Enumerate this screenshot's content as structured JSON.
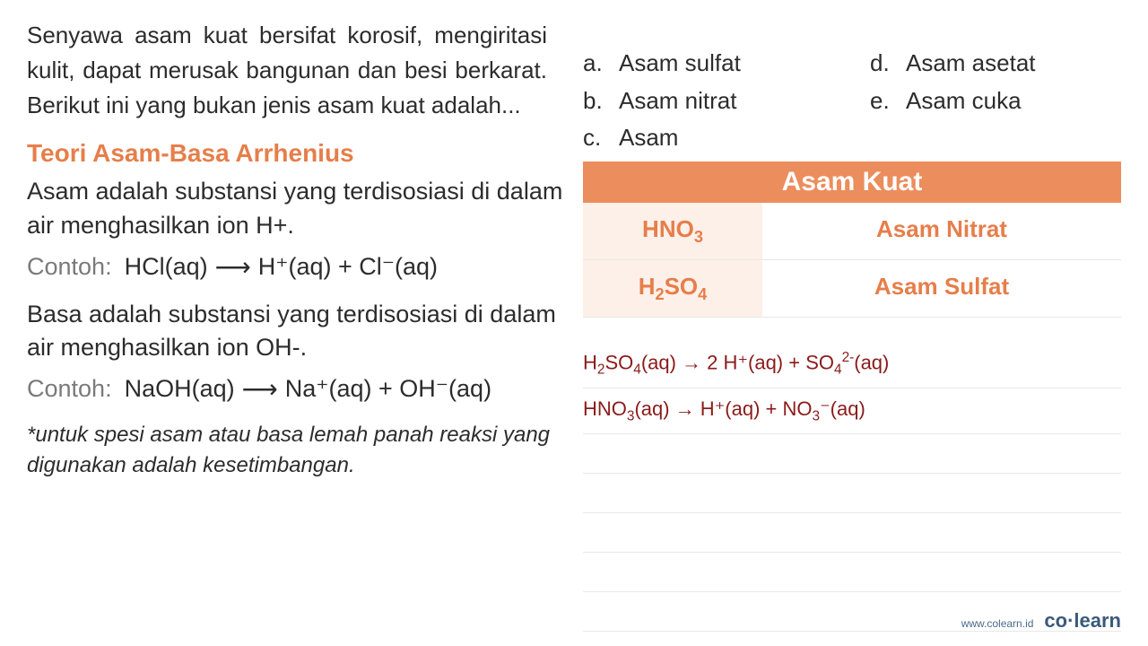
{
  "question": "Senyawa asam kuat bersifat korosif, mengiritasi kulit, dapat merusak bangunan dan besi berkarat. Berikut ini yang bukan jenis asam kuat adalah...",
  "options": [
    {
      "letter": "a.",
      "text": "Asam sulfat"
    },
    {
      "letter": "b.",
      "text": "Asam nitrat"
    },
    {
      "letter": "c.",
      "text": "Asam"
    },
    {
      "letter": "d.",
      "text": "Asam asetat"
    },
    {
      "letter": "e.",
      "text": "Asam cuka"
    }
  ],
  "section_title": "Teori Asam-Basa Arrhenius",
  "asam_definition": "Asam adalah substansi yang terdisosiasi di dalam air menghasilkan ion H+.",
  "contoh_label": "Contoh:",
  "asam_equation_left": "HCl(aq)",
  "asam_equation_right": "H⁺(aq) + Cl⁻(aq)",
  "basa_definition": "Basa adalah substansi yang terdisosiasi di dalam air menghasilkan ion OH-.",
  "basa_equation_left": "NaOH(aq)",
  "basa_equation_right": "Na⁺(aq) + OH⁻(aq)",
  "note": "*untuk spesi asam atau basa lemah panah reaksi yang digunakan adalah kesetimbangan.",
  "table": {
    "header": "Asam Kuat",
    "rows": [
      {
        "formula_html": "HNO<sub>3</sub>",
        "name": "Asam Nitrat"
      },
      {
        "formula_html": "H<sub>2</sub>SO<sub>4</sub>",
        "name": "Asam Sulfat"
      }
    ]
  },
  "reactions": [
    "H<sub>2</sub>SO<sub>4</sub>(aq) → 2 H⁺(aq) + SO<sub>4</sub><sup>2-</sup>(aq)",
    "HNO<sub>3</sub>(aq) → H⁺(aq) + NO<sub>3</sub>⁻(aq)"
  ],
  "footer": {
    "url": "www.colearn.id",
    "logo": "co·learn"
  },
  "colors": {
    "accent": "#e67e4a",
    "header_bg": "#ec8d5d",
    "cell_bg": "#fdf0e8",
    "reaction_color": "#8b1a1a",
    "text": "#2c2c2c",
    "gray": "#7a7a7a",
    "border": "#e8e8e8",
    "footer_color": "#3a5a7a"
  }
}
